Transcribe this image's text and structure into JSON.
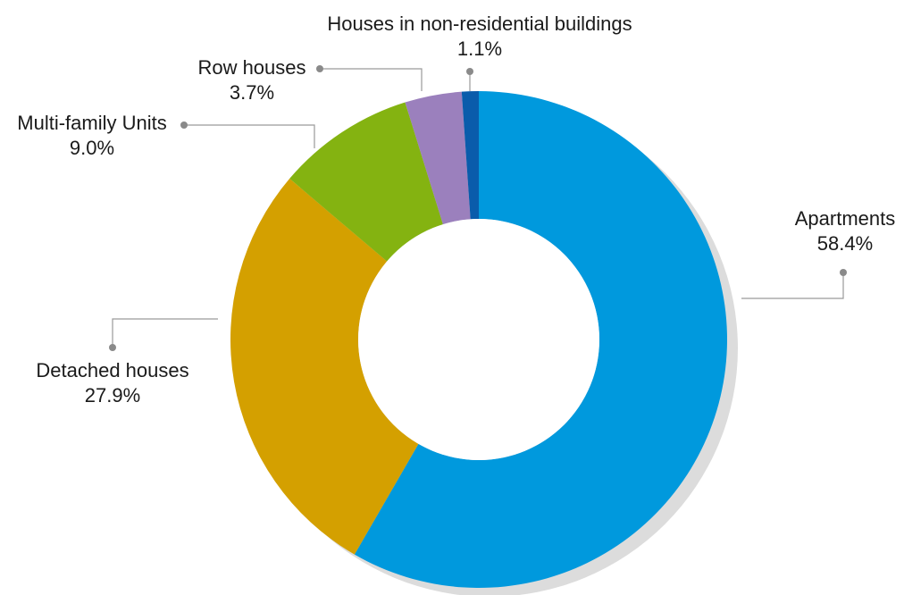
{
  "chart_data": {
    "type": "pie",
    "variant": "donut",
    "title": "",
    "slices": [
      {
        "label": "Apartments",
        "value_label": "58.4%",
        "value": 58.4,
        "color": "#0099dd"
      },
      {
        "label": "Detached houses",
        "value_label": "27.9%",
        "value": 27.9,
        "color": "#d4a000"
      },
      {
        "label": "Multi-family Units",
        "value_label": "9.0%",
        "value": 9.0,
        "color": "#84b311"
      },
      {
        "label": "Row houses",
        "value_label": "3.7%",
        "value": 3.7,
        "color": "#9b80bd"
      },
      {
        "label": "Houses in non-residential buildings",
        "value_label": "1.1%",
        "value": 1.1,
        "color": "#0a5cab"
      }
    ],
    "shadow_color": "#dcdcdc",
    "leader_color": "#9a9a9a",
    "start_position": "top",
    "direction": "clockwise"
  }
}
